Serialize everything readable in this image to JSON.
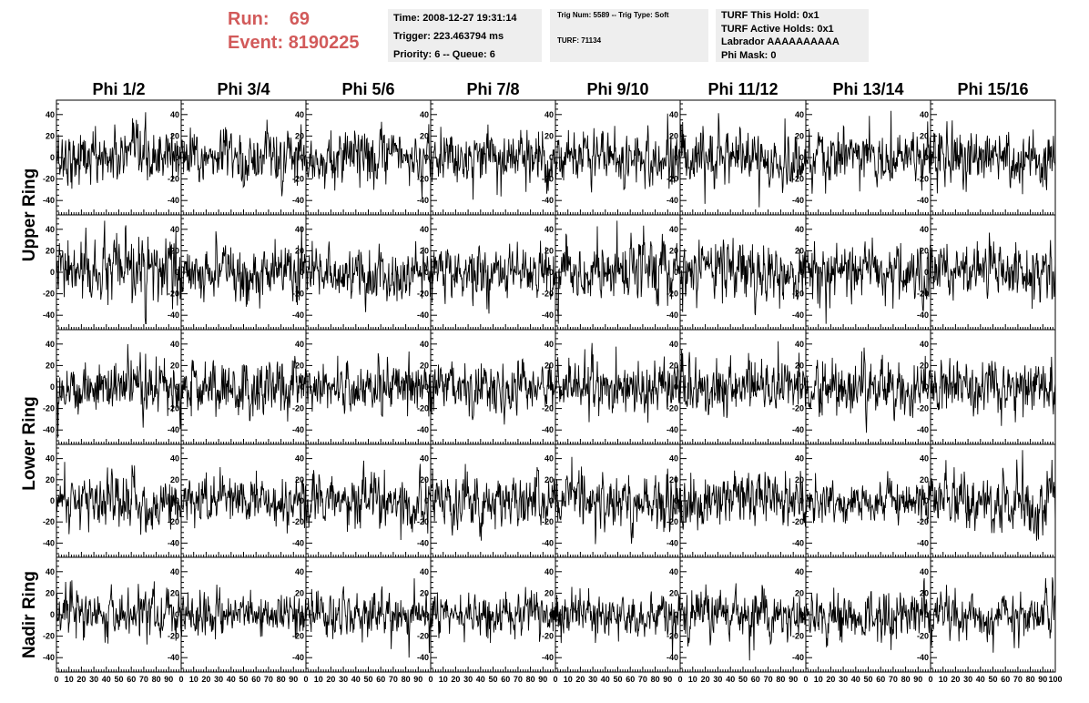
{
  "header": {
    "run_label": "Run:",
    "run_value": "69",
    "event_label": "Event:",
    "event_value": "8190225"
  },
  "info_box_1": {
    "time": "Time: 2008-12-27 19:31:14",
    "trigger": "Trigger: 223.463794 ms",
    "priority": "Priority: 6 -- Queue: 6"
  },
  "info_box_2": {
    "trig": "Trig Num: 5589 -- Trig Type: Soft",
    "turf": "TURF: 71134"
  },
  "info_box_3": {
    "hold": "TURF This Hold: 0x1",
    "active": "TURF Active Holds: 0x1",
    "labrador": "Labrador AAAAAAAAAA",
    "phimask": "Phi Mask: 0"
  },
  "colors": {
    "run_text": "#d25a5a",
    "info_bg": "#eeeeee",
    "trace": "#000000"
  },
  "chart_data": {
    "type": "line",
    "phi_sectors": [
      "Phi 1/2",
      "Phi 3/4",
      "Phi 5/6",
      "Phi 7/8",
      "Phi 9/10",
      "Phi 11/12",
      "Phi 13/14",
      "Phi 15/16"
    ],
    "rows": [
      "Upper Ring",
      "Upper Ring",
      "Lower Ring",
      "Lower Ring",
      "Nadir Ring"
    ],
    "ring_labels": [
      {
        "text": "Upper Ring",
        "rows": [
          0,
          1
        ]
      },
      {
        "text": "Lower Ring",
        "rows": [
          2,
          3
        ]
      },
      {
        "text": "Nadir Ring",
        "rows": [
          4
        ]
      }
    ],
    "xlim": [
      0,
      100
    ],
    "ylim": [
      -50,
      50
    ],
    "x_ticks": [
      "0",
      "10",
      "20",
      "30",
      "40",
      "50",
      "60",
      "70",
      "80",
      "90",
      "100"
    ],
    "y_ticks": [
      "40",
      "20",
      "0",
      "-20",
      "-40"
    ],
    "x_tick_values": [
      0,
      10,
      20,
      30,
      40,
      50,
      60,
      70,
      80,
      90,
      100
    ],
    "y_tick_values": [
      40,
      20,
      0,
      -20,
      -40
    ],
    "samples_per_trace": 260,
    "amplitude_rms": [
      [
        12,
        12,
        12,
        12,
        12,
        12,
        12,
        12
      ],
      [
        14,
        12,
        12,
        12,
        14,
        13,
        12,
        13
      ],
      [
        12,
        12,
        12,
        12,
        12,
        12,
        12,
        11
      ],
      [
        12,
        11,
        12,
        12,
        12,
        12,
        10,
        14
      ],
      [
        11,
        9,
        10,
        10,
        10,
        11,
        11,
        11
      ]
    ],
    "grid": false
  }
}
